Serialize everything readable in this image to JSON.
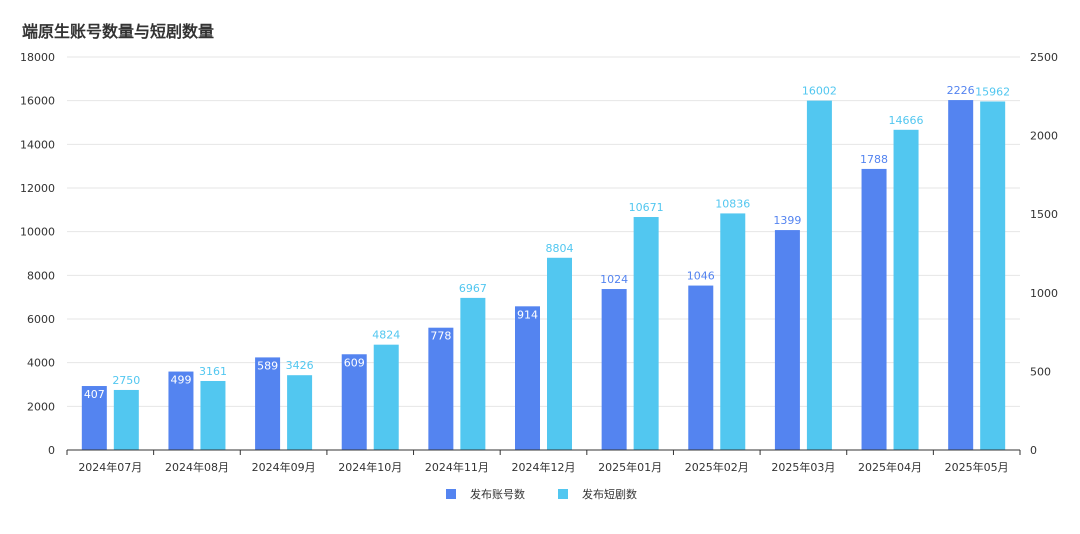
{
  "title": "端原生账号数量与短剧数量",
  "chart_data": {
    "type": "bar",
    "title": "端原生账号数量与短剧数量",
    "categories": [
      "2024年07月",
      "2024年08月",
      "2024年09月",
      "2024年10月",
      "2024年11月",
      "2024年12月",
      "2025年01月",
      "2025年02月",
      "2025年03月",
      "2025年04月",
      "2025年05月"
    ],
    "series": [
      {
        "name": "发布账号数",
        "axis": "right",
        "color": "#5484f0",
        "values": [
          407,
          499,
          589,
          609,
          778,
          914,
          1024,
          1046,
          1399,
          1788,
          2226
        ]
      },
      {
        "name": "发布短剧数",
        "axis": "left",
        "color": "#52c7f0",
        "values": [
          2750,
          3161,
          3426,
          4824,
          6967,
          8804,
          10671,
          10836,
          16002,
          14666,
          15962
        ]
      }
    ],
    "y_left": {
      "min": 0,
      "max": 18000,
      "ticks": [
        0,
        2000,
        4000,
        6000,
        8000,
        10000,
        12000,
        14000,
        16000,
        18000
      ]
    },
    "y_right": {
      "min": 0,
      "max": 2500,
      "ticks": [
        0,
        500,
        1000,
        1500,
        2000,
        2500
      ]
    },
    "grid": true,
    "legend": "bottom-center",
    "xlabel": "",
    "ylabel": ""
  }
}
